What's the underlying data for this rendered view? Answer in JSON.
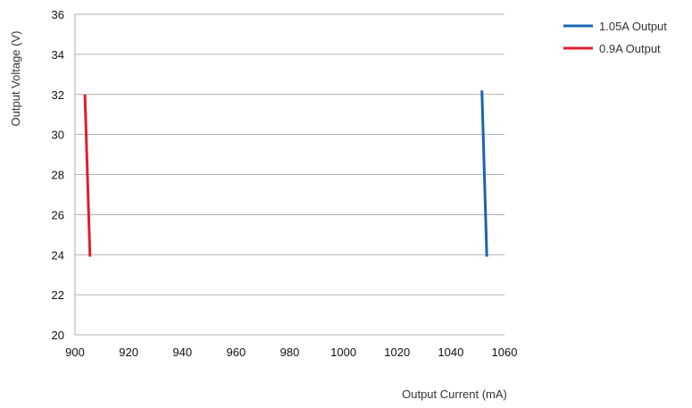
{
  "chart_data": {
    "type": "line",
    "xlabel": "Output Current (mA)",
    "ylabel": "Output Voltage (V)",
    "xlim": [
      900,
      1060
    ],
    "ylim": [
      20,
      36
    ],
    "x_ticks": [
      900,
      920,
      940,
      960,
      980,
      1000,
      1020,
      1040,
      1060
    ],
    "y_ticks": [
      20,
      22,
      24,
      26,
      28,
      30,
      32,
      34,
      36
    ],
    "grid": "horizontal",
    "legend_position": "top-right",
    "series": [
      {
        "name": "1.05A Output",
        "color": "#1a64b4",
        "x": [
          1051.6,
          1053.4
        ],
        "y": [
          32.2,
          23.9
        ]
      },
      {
        "name": "0.9A Output",
        "color": "#e01e2d",
        "x": [
          903.7,
          905.6
        ],
        "y": [
          32.0,
          23.9
        ]
      }
    ]
  }
}
